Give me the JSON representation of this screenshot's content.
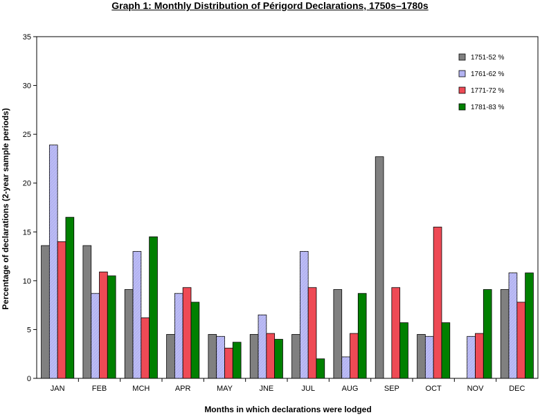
{
  "chart_data": {
    "type": "bar",
    "title": "Graph 1:  Monthly Distribution of  Périgord Declarations, 1750s–1780s",
    "xlabel": "Months in which declarations were lodged",
    "ylabel": "Percentage of declarations (2-year sample periods)",
    "ylim": [
      0,
      35
    ],
    "yticks": [
      0,
      5,
      10,
      15,
      20,
      25,
      30,
      35
    ],
    "grid": false,
    "legend_position": "top-right",
    "categories": [
      "JAN",
      "FEB",
      "MCH",
      "APR",
      "MAY",
      "JNE",
      "JUL",
      "AUG",
      "SEP",
      "OCT",
      "NOV",
      "DEC"
    ],
    "series": [
      {
        "name": "1751-52 %",
        "color": "#808080",
        "values": [
          13.6,
          13.6,
          9.1,
          4.5,
          4.5,
          4.5,
          4.5,
          9.1,
          22.7,
          4.5,
          0,
          9.1
        ]
      },
      {
        "name": "1761-62 %",
        "color": "#b3b3f2",
        "values": [
          23.9,
          8.7,
          13.0,
          8.7,
          4.3,
          6.5,
          13.0,
          2.2,
          0,
          4.3,
          4.3,
          10.8
        ]
      },
      {
        "name": "1771-72 %",
        "color": "#ee4a55",
        "values": [
          14.0,
          10.9,
          6.2,
          9.3,
          3.1,
          4.6,
          9.3,
          4.6,
          9.3,
          15.5,
          4.6,
          7.8
        ]
      },
      {
        "name": "1781-83 %",
        "color": "#008000",
        "values": [
          16.5,
          10.5,
          14.5,
          7.8,
          3.7,
          4.0,
          2.0,
          8.7,
          5.7,
          5.7,
          9.1,
          10.8
        ]
      }
    ]
  }
}
